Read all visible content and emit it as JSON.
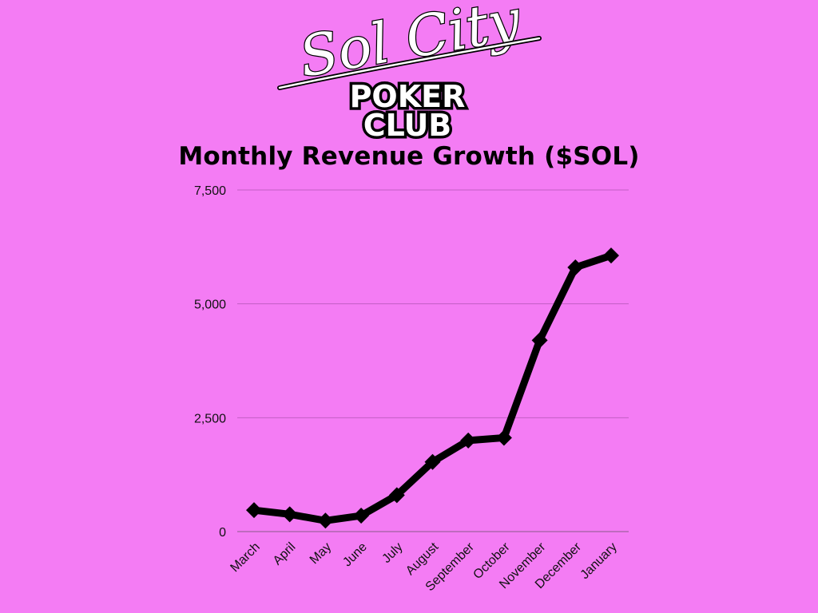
{
  "colors": {
    "background": "#f47cf4",
    "line": "#000000",
    "gridline": "#c25ec4",
    "logo_fill": "#ffffff",
    "logo_stroke": "#000000"
  },
  "logo": {
    "script_text": "Sol City",
    "block_line1": "POKER",
    "block_line2": "CLUB"
  },
  "chart_data": {
    "type": "line",
    "title": "Monthly Revenue Growth ($SOL)",
    "xlabel": "",
    "ylabel": "",
    "categories": [
      "March",
      "April",
      "May",
      "June",
      "July",
      "August",
      "September",
      "October",
      "November",
      "December",
      "January"
    ],
    "series": [
      {
        "values": [
          470,
          380,
          240,
          350,
          800,
          1530,
          2000,
          2060,
          4200,
          5800,
          6060
        ]
      }
    ],
    "ylim": [
      0,
      7500
    ],
    "yticks": [
      0,
      2500,
      5000,
      7500
    ],
    "ytick_labels": [
      "0",
      "2,500",
      "5,000",
      "7,500"
    ],
    "grid": true,
    "marker": "diamond",
    "legend": "none"
  }
}
